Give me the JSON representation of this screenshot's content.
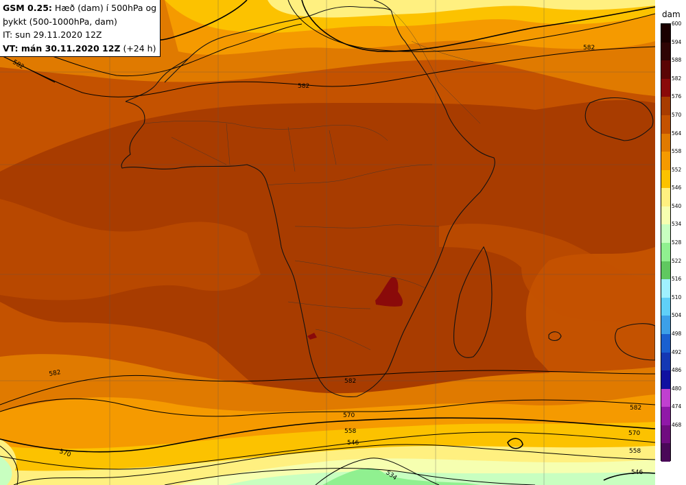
{
  "header": {
    "line1_bold": "GSM 0.25:",
    "line1_rest": " Hæð (dam) í 500hPa og",
    "line2": "þykkt (500-1000hPa, dam)",
    "line3": "IT: sun 29.11.2020 12Z",
    "line4_bold": "VT: mán 30.11.2020 12Z",
    "line4_rest": " (+24 h)"
  },
  "legend": {
    "unit": "dam",
    "levels": [
      {
        "value": "600",
        "color": "#1a0000"
      },
      {
        "value": "594",
        "color": "#2e0505"
      },
      {
        "value": "588",
        "color": "#5a0505"
      },
      {
        "value": "582",
        "color": "#8a0a0a"
      },
      {
        "value": "576",
        "color": "#a83c00"
      },
      {
        "value": "570",
        "color": "#c45200"
      },
      {
        "value": "564",
        "color": "#e07a00"
      },
      {
        "value": "558",
        "color": "#f59a00"
      },
      {
        "value": "552",
        "color": "#fcc200"
      },
      {
        "value": "546",
        "color": "#fff080"
      },
      {
        "value": "540",
        "color": "#f6ffb0"
      },
      {
        "value": "534",
        "color": "#c8ffc0"
      },
      {
        "value": "528",
        "color": "#90f090"
      },
      {
        "value": "522",
        "color": "#60c860"
      },
      {
        "value": "516",
        "color": "#a0f0ff"
      },
      {
        "value": "510",
        "color": "#60d0f8"
      },
      {
        "value": "504",
        "color": "#3ca0e8"
      },
      {
        "value": "498",
        "color": "#1a60d0"
      },
      {
        "value": "492",
        "color": "#1438b4"
      },
      {
        "value": "486",
        "color": "#1010a0"
      },
      {
        "value": "480",
        "color": "#c040d0"
      },
      {
        "value": "474",
        "color": "#9018a8"
      },
      {
        "value": "468",
        "color": "#700c80"
      },
      {
        "value": "",
        "color": "#4a0858"
      }
    ]
  },
  "contour_labels": [
    "582",
    "582",
    "582",
    "582",
    "582",
    "582",
    "570",
    "570",
    "570",
    "558",
    "558",
    "546",
    "546",
    "534"
  ]
}
